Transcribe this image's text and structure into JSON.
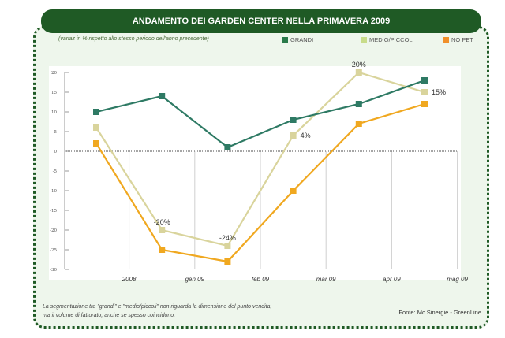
{
  "chart_data": {
    "type": "line",
    "title": "ANDAMENTO DEI GARDEN CENTER NELLA PRIMAVERA 2009",
    "subtitle": "(variaz in % rispetto allo stesso periodo dell'anno precedente)",
    "x_tick_labels": [
      "2008",
      "gen 09",
      "feb 09",
      "mar 09",
      "apr 09",
      "mag 09"
    ],
    "y_ticks": [
      20,
      15,
      10,
      5,
      0,
      -5,
      -10,
      -15,
      -20,
      -25,
      -30
    ],
    "ylim": [
      -30,
      20
    ],
    "grid": true,
    "legend_position": "top-right",
    "series": [
      {
        "name": "GRANDI",
        "color": "#2e7a64",
        "legend_color": "#2a7a4a",
        "values": [
          10,
          14,
          1,
          8,
          12,
          18
        ],
        "labels": [
          null,
          null,
          null,
          null,
          null,
          null
        ]
      },
      {
        "name": "MEDIO/PICCOLI",
        "color": "#d9d49c",
        "legend_color": "#c8dc8a",
        "values": [
          6,
          -20,
          -24,
          4,
          20,
          15
        ],
        "labels": [
          null,
          "-20%",
          "-24%",
          "4%",
          "20%",
          "15%"
        ]
      },
      {
        "name": "NO PET",
        "color": "#f0a820",
        "legend_color": "#f0902a",
        "values": [
          2,
          -25,
          -28,
          -10,
          7,
          12
        ],
        "labels": [
          null,
          null,
          null,
          null,
          null,
          null
        ]
      }
    ]
  },
  "footer": {
    "note_line1": "La segmentazione tra \"grandi\" e \"medio/piccoli\" non riguarda la dimensione del punto vendita,",
    "note_line2": "ma il volume di fatturato, anche se spesso coincidono.",
    "source": "Fonte: Mc Sinergie - GreenLine"
  }
}
